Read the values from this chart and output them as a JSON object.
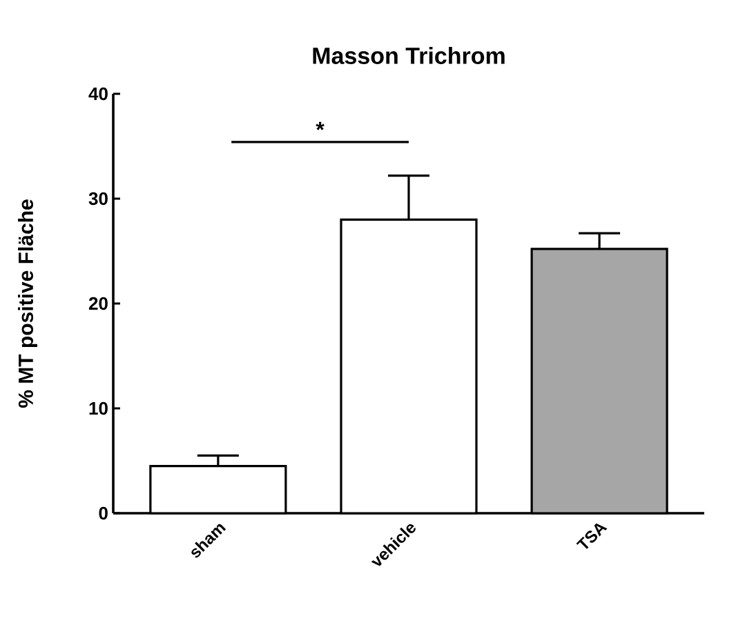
{
  "chart_data": {
    "type": "bar",
    "title": "Masson Trichrom",
    "ylabel": "% MT positive Fläche",
    "categories": [
      "sham",
      "vehicle",
      "TSA"
    ],
    "values": [
      4.5,
      28,
      25.2
    ],
    "errors": [
      1.0,
      4.2,
      1.5
    ],
    "colors": [
      "#ffffff",
      "#ffffff",
      "#a6a6a6"
    ],
    "ylim": [
      0,
      40
    ],
    "yticks": [
      0,
      10,
      20,
      30,
      40
    ],
    "annotations": [
      "*"
    ]
  }
}
